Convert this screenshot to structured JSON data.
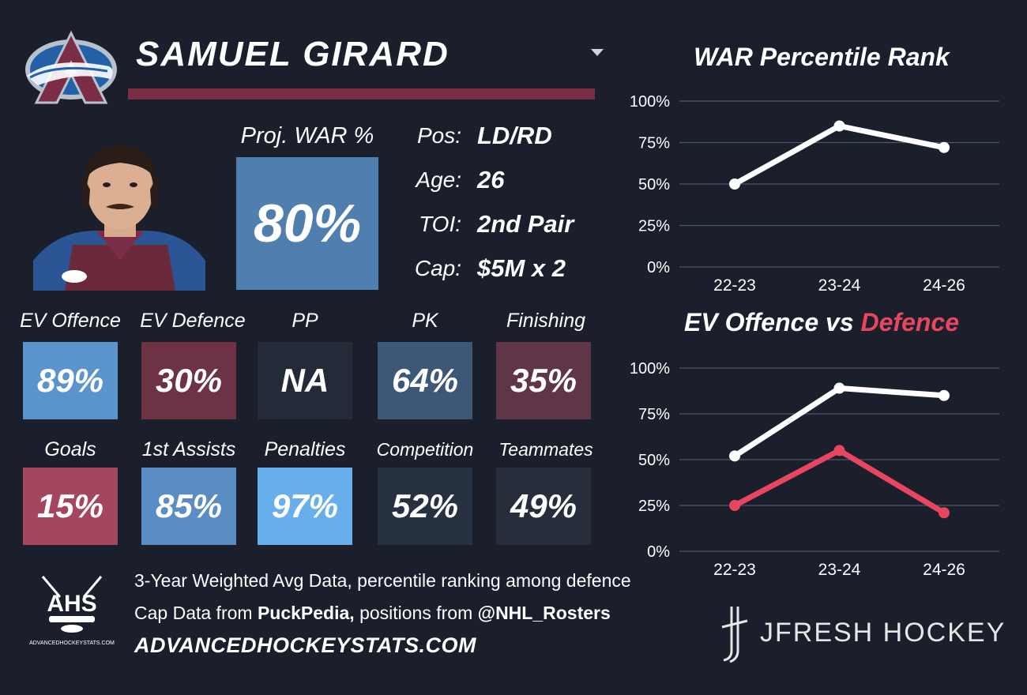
{
  "player": {
    "name": "SAMUEL GIRARD",
    "proj_war_label": "Proj. WAR %",
    "proj_war_value": "80%",
    "info": [
      {
        "label": "Pos:",
        "value": "LD/RD"
      },
      {
        "label": "Age:",
        "value": "26"
      },
      {
        "label": "TOI:",
        "value": "2nd Pair"
      },
      {
        "label": "Cap:",
        "value": "$5M x 2"
      }
    ]
  },
  "stats_row1": [
    {
      "label": "EV Offence",
      "value": "89%",
      "color": "#5b94cd"
    },
    {
      "label": "EV Defence",
      "value": "30%",
      "color": "#6e3245"
    },
    {
      "label": "PP",
      "value": "NA",
      "color": "#242b38"
    },
    {
      "label": "PK",
      "value": "64%",
      "color": "#3d5877"
    },
    {
      "label": "Finishing",
      "value": "35%",
      "color": "#5f3547"
    }
  ],
  "stats_row2": [
    {
      "label": "Goals",
      "value": "15%",
      "color": "#a5465f"
    },
    {
      "label": "1st Assists",
      "value": "85%",
      "color": "#5a8dc4"
    },
    {
      "label": "Penalties",
      "value": "97%",
      "color": "#68aeea"
    },
    {
      "label": "Competition",
      "value": "52%",
      "color": "#273141"
    },
    {
      "label": "Teammates",
      "value": "49%",
      "color": "#262e3c"
    }
  ],
  "footer": {
    "line1": "3-Year Weighted Avg Data, percentile ranking among defence",
    "line2_prefix": "Cap Data from ",
    "line2_source1": "PuckPedia,",
    "line2_mid": " positions from ",
    "line2_source2": "@NHL_Rosters",
    "site": "ADVANCEDHOCKEYSTATS.COM",
    "ahs_logo_text": "AHS",
    "ahs_logo_sub": "ADVANCEDHOCKEYSTATS.COM",
    "brand": "JFRESH HOCKEY"
  },
  "chart_data": [
    {
      "type": "line",
      "title": "WAR Percentile Rank",
      "categories": [
        "22-23",
        "23-24",
        "24-26"
      ],
      "series": [
        {
          "values": [
            50,
            85,
            72
          ],
          "color": "#ffffff"
        }
      ],
      "ylim": [
        0,
        100
      ],
      "yticks": [
        "0%",
        "25%",
        "50%",
        "75%",
        "100%"
      ],
      "grid": true
    },
    {
      "type": "line",
      "title_parts": [
        "EV Offence vs ",
        "Defence"
      ],
      "title_colors": [
        "#ffffff",
        "#e8465e"
      ],
      "categories": [
        "22-23",
        "23-24",
        "24-26"
      ],
      "series": [
        {
          "values": [
            52,
            89,
            85
          ],
          "color": "#ffffff"
        },
        {
          "values": [
            25,
            55,
            21
          ],
          "color": "#e8465e"
        }
      ],
      "ylim": [
        0,
        100
      ],
      "yticks": [
        "0%",
        "25%",
        "50%",
        "75%",
        "100%"
      ],
      "grid": true
    }
  ]
}
